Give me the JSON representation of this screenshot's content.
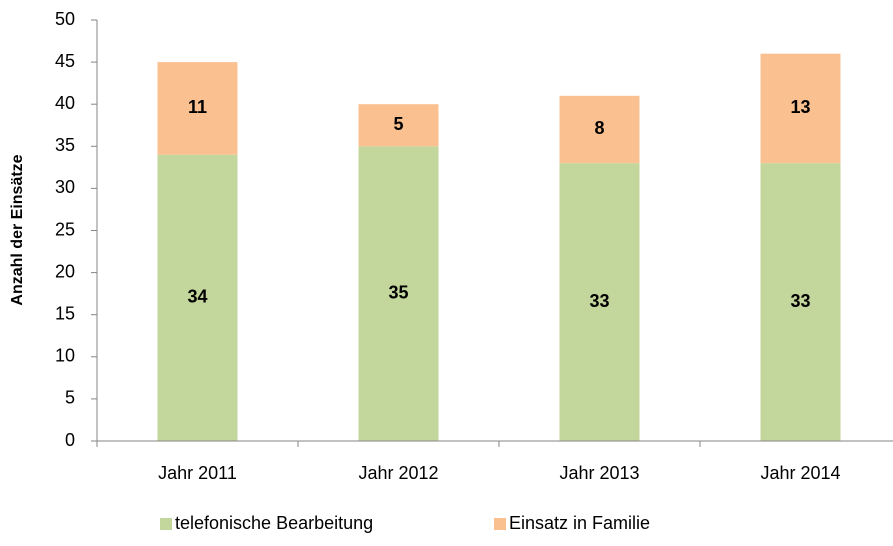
{
  "chart_data": {
    "type": "stacked_bar",
    "y_label": "Anzahl der Einsätze",
    "categories": [
      "Jahr 2011",
      "Jahr 2012",
      "Jahr 2013",
      "Jahr 2014"
    ],
    "series": [
      {
        "name": "telefonische Bearbeitung",
        "color": "#c3d69b",
        "values": [
          34,
          35,
          33,
          33
        ]
      },
      {
        "name": "Einsatz in Familie",
        "color": "#fac090",
        "values": [
          11,
          5,
          8,
          13
        ]
      }
    ],
    "ylim": [
      0,
      50
    ],
    "yticks": [
      0,
      5,
      10,
      15,
      20,
      25,
      30,
      35,
      40,
      45,
      50
    ],
    "legend": "bottom"
  }
}
